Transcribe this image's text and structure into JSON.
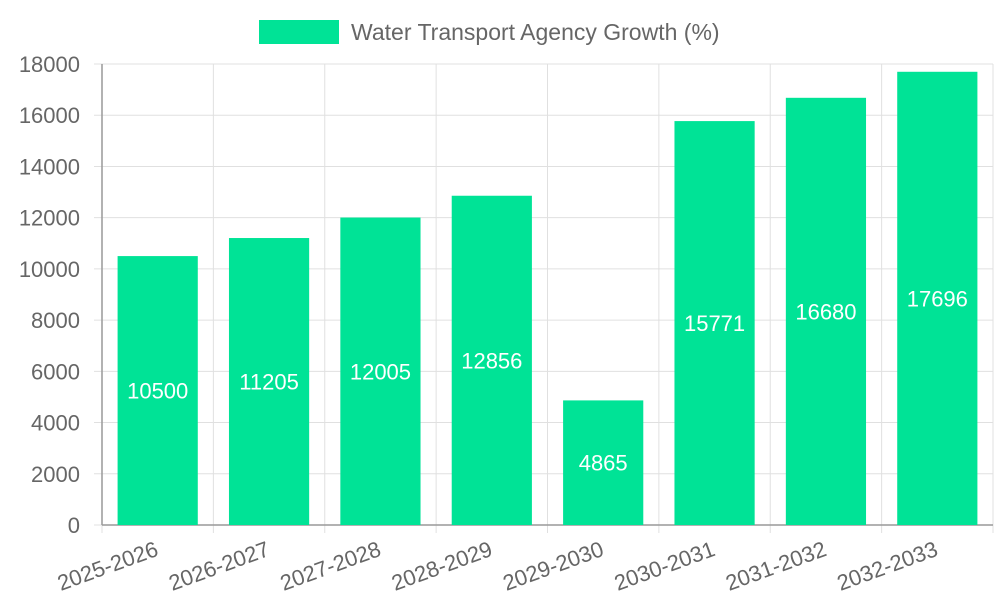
{
  "chart_data": {
    "type": "bar",
    "title": "",
    "legend": {
      "label": "Water Transport Agency Growth (%)",
      "position": "top-center"
    },
    "categories": [
      "2025-2026",
      "2026-2027",
      "2027-2028",
      "2028-2029",
      "2029-2030",
      "2030-2031",
      "2031-2032",
      "2032-2033"
    ],
    "series": [
      {
        "name": "Water Transport Agency Growth (%)",
        "values": [
          10500,
          11205,
          12005,
          12856,
          4865,
          15771,
          16680,
          17696
        ],
        "color": "#00e396"
      }
    ],
    "ylim": [
      0,
      18000
    ],
    "yticks": [
      0,
      2000,
      4000,
      6000,
      8000,
      10000,
      12000,
      14000,
      16000,
      18000
    ],
    "xlabel": "",
    "ylabel": "",
    "grid": true,
    "data_labels": true
  },
  "colors": {
    "grid": "#e0e0e0",
    "axis": "#999999",
    "text": "#666666",
    "bar_label": "#ffffff"
  }
}
